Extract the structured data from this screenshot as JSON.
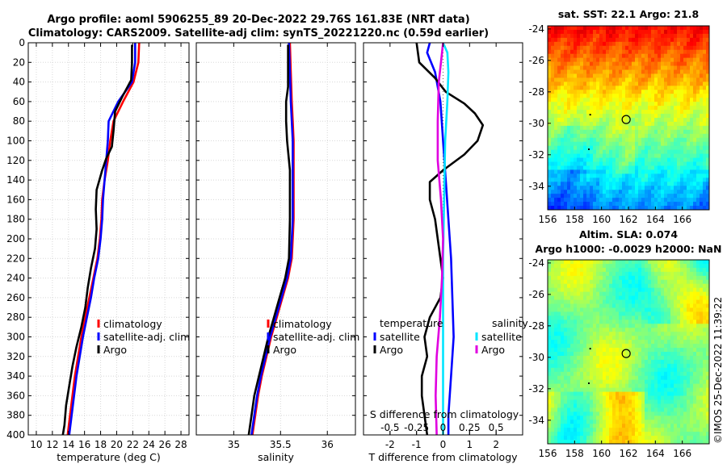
{
  "figure": {
    "title_line1": "Argo profile: aoml 5906255_89 20-Dec-2022 29.76S 161.83E (NRT data)",
    "title_line2": "Climatology: CARS2009. Satellite-adj clim: synTS_20221220.nc (0.59d earlier)",
    "credit": "©IMOS 25-Dec-2022 11:39:22"
  },
  "chart_data": [
    {
      "type": "line",
      "name": "temperature-profile",
      "xlabel": "temperature (deg C)",
      "ylabel": "",
      "xlim": [
        9,
        29
      ],
      "ylim": [
        400,
        0
      ],
      "xticks": [
        10,
        12,
        14,
        16,
        18,
        20,
        22,
        24,
        26,
        28
      ],
      "yticks": [
        0,
        20,
        40,
        60,
        80,
        100,
        120,
        140,
        160,
        180,
        200,
        220,
        240,
        260,
        280,
        300,
        320,
        340,
        360,
        380,
        400
      ],
      "grid": true,
      "legend": [
        "climatology",
        "satellite-adj. clim",
        "Argo"
      ],
      "legend_position": "bottom-right",
      "series": [
        {
          "name": "climatology",
          "color": "#ff0000",
          "points": [
            [
              22.8,
              0
            ],
            [
              22.7,
              20
            ],
            [
              22.1,
              40
            ],
            [
              20.8,
              60
            ],
            [
              19.6,
              80
            ],
            [
              19.2,
              100
            ],
            [
              18.9,
              120
            ],
            [
              18.5,
              140
            ],
            [
              18.2,
              160
            ],
            [
              18.1,
              180
            ],
            [
              17.9,
              200
            ],
            [
              17.6,
              220
            ],
            [
              17.1,
              240
            ],
            [
              16.6,
              260
            ],
            [
              16.1,
              280
            ],
            [
              15.6,
              300
            ],
            [
              15.2,
              320
            ],
            [
              14.8,
              340
            ],
            [
              14.5,
              360
            ],
            [
              14.2,
              380
            ],
            [
              13.9,
              400
            ]
          ]
        },
        {
          "name": "satellite-adj. clim",
          "color": "#0000ff",
          "points": [
            [
              22.3,
              0
            ],
            [
              22.3,
              20
            ],
            [
              21.9,
              40
            ],
            [
              20.2,
              60
            ],
            [
              19.0,
              80
            ],
            [
              18.9,
              100
            ],
            [
              18.7,
              120
            ],
            [
              18.5,
              140
            ],
            [
              18.3,
              160
            ],
            [
              18.2,
              180
            ],
            [
              18.0,
              200
            ],
            [
              17.7,
              220
            ],
            [
              17.2,
              240
            ],
            [
              16.8,
              260
            ],
            [
              16.3,
              280
            ],
            [
              15.8,
              300
            ],
            [
              15.4,
              320
            ],
            [
              15.0,
              340
            ],
            [
              14.7,
              360
            ],
            [
              14.4,
              380
            ],
            [
              14.1,
              400
            ]
          ]
        },
        {
          "name": "Argo",
          "color": "#000000",
          "points": [
            [
              21.9,
              2
            ],
            [
              21.9,
              20
            ],
            [
              21.8,
              38
            ],
            [
              20.7,
              55
            ],
            [
              19.8,
              70
            ],
            [
              19.6,
              90
            ],
            [
              19.4,
              106
            ],
            [
              18.7,
              118
            ],
            [
              18.2,
              130
            ],
            [
              17.5,
              150
            ],
            [
              17.4,
              170
            ],
            [
              17.5,
              190
            ],
            [
              17.3,
              210
            ],
            [
              16.8,
              230
            ],
            [
              16.4,
              250
            ],
            [
              16.1,
              270
            ],
            [
              15.6,
              290
            ],
            [
              15.0,
              310
            ],
            [
              14.5,
              330
            ],
            [
              14.1,
              350
            ],
            [
              13.7,
              370
            ],
            [
              13.5,
              390
            ],
            [
              13.3,
              400
            ]
          ]
        }
      ]
    },
    {
      "type": "line",
      "name": "salinity-profile",
      "xlabel": "salinity",
      "xlim": [
        34.6,
        36.3
      ],
      "ylim": [
        400,
        0
      ],
      "xticks": [
        35,
        35.5,
        36
      ],
      "grid": true,
      "legend": [
        "climatology",
        "satellite-adj. clim",
        "Argo"
      ],
      "legend_position": "bottom-right",
      "series": [
        {
          "name": "climatology",
          "color": "#ff0000",
          "points": [
            [
              35.6,
              0
            ],
            [
              35.61,
              30
            ],
            [
              35.62,
              60
            ],
            [
              35.63,
              80
            ],
            [
              35.64,
              100
            ],
            [
              35.64,
              140
            ],
            [
              35.64,
              180
            ],
            [
              35.63,
              200
            ],
            [
              35.62,
              220
            ],
            [
              35.58,
              240
            ],
            [
              35.52,
              260
            ],
            [
              35.46,
              280
            ],
            [
              35.4,
              300
            ],
            [
              35.35,
              320
            ],
            [
              35.3,
              340
            ],
            [
              35.26,
              360
            ],
            [
              35.23,
              380
            ],
            [
              35.2,
              400
            ]
          ]
        },
        {
          "name": "satellite-adj. clim",
          "color": "#0000ff",
          "points": [
            [
              35.59,
              0
            ],
            [
              35.6,
              30
            ],
            [
              35.61,
              60
            ],
            [
              35.62,
              80
            ],
            [
              35.63,
              100
            ],
            [
              35.63,
              140
            ],
            [
              35.63,
              180
            ],
            [
              35.62,
              200
            ],
            [
              35.61,
              220
            ],
            [
              35.57,
              240
            ],
            [
              35.51,
              260
            ],
            [
              35.45,
              280
            ],
            [
              35.39,
              300
            ],
            [
              35.34,
              320
            ],
            [
              35.29,
              340
            ],
            [
              35.25,
              360
            ],
            [
              35.22,
              380
            ],
            [
              35.19,
              400
            ]
          ]
        },
        {
          "name": "Argo",
          "color": "#000000",
          "points": [
            [
              35.58,
              2
            ],
            [
              35.58,
              30
            ],
            [
              35.58,
              45
            ],
            [
              35.56,
              60
            ],
            [
              35.56,
              80
            ],
            [
              35.57,
              100
            ],
            [
              35.6,
              130
            ],
            [
              35.6,
              180
            ],
            [
              35.59,
              220
            ],
            [
              35.55,
              240
            ],
            [
              35.49,
              260
            ],
            [
              35.43,
              280
            ],
            [
              35.37,
              300
            ],
            [
              35.32,
              320
            ],
            [
              35.27,
              340
            ],
            [
              35.22,
              360
            ],
            [
              35.19,
              380
            ],
            [
              35.16,
              400
            ]
          ]
        }
      ]
    },
    {
      "type": "line",
      "name": "difference-profile",
      "xlabel": "T difference from climatology",
      "xlabel2": "S difference from climatology",
      "xlim": [
        -3,
        3
      ],
      "ylim": [
        400,
        0
      ],
      "xticks": [
        -2,
        -1,
        0,
        1,
        2
      ],
      "xticks_salinity": [
        -0.5,
        -0.25,
        0,
        0.25,
        0.5
      ],
      "grid": false,
      "legend_temperature_header": "temperature",
      "legend_salinity_header": "salinity",
      "legend_temperature": [
        "satellite",
        "Argo"
      ],
      "legend_salinity": [
        "satellite",
        "Argo"
      ],
      "legend_position": "bottom",
      "series": [
        {
          "name": "temperature satellite",
          "color": "#0000ff",
          "points": [
            [
              -0.5,
              0
            ],
            [
              -0.6,
              10
            ],
            [
              -0.3,
              30
            ],
            [
              -0.1,
              60
            ],
            [
              0,
              100
            ],
            [
              0.1,
              140
            ],
            [
              0.2,
              180
            ],
            [
              0.3,
              220
            ],
            [
              0.35,
              260
            ],
            [
              0.4,
              300
            ],
            [
              0.3,
              340
            ],
            [
              0.2,
              380
            ],
            [
              0.2,
              400
            ]
          ]
        },
        {
          "name": "temperature Argo",
          "color": "#000000",
          "points": [
            [
              -1,
              0
            ],
            [
              -0.9,
              20
            ],
            [
              -0.3,
              36
            ],
            [
              0.1,
              50
            ],
            [
              0.8,
              62
            ],
            [
              1.2,
              72
            ],
            [
              1.5,
              84
            ],
            [
              1.3,
              100
            ],
            [
              0.8,
              114
            ],
            [
              0,
              130
            ],
            [
              -0.5,
              142
            ],
            [
              -0.5,
              160
            ],
            [
              -0.3,
              180
            ],
            [
              -0.1,
              220
            ],
            [
              0,
              240
            ],
            [
              -0.1,
              260
            ],
            [
              -0.5,
              280
            ],
            [
              -0.7,
              300
            ],
            [
              -0.6,
              320
            ],
            [
              -0.8,
              340
            ],
            [
              -0.8,
              360
            ],
            [
              -0.7,
              380
            ],
            [
              -0.6,
              400
            ]
          ]
        },
        {
          "name": "salinity satellite",
          "color": "#00e5ff",
          "points": [
            [
              0,
              0
            ],
            [
              0.04,
              10
            ],
            [
              0.05,
              30
            ],
            [
              0.04,
              60
            ],
            [
              0.02,
              100
            ],
            [
              0.01,
              160
            ],
            [
              0,
              220
            ],
            [
              0,
              280
            ],
            [
              0,
              340
            ],
            [
              0,
              400
            ]
          ]
        },
        {
          "name": "salinity Argo",
          "color": "#e000e0",
          "points": [
            [
              0,
              0
            ],
            [
              -0.02,
              20
            ],
            [
              -0.04,
              40
            ],
            [
              -0.05,
              80
            ],
            [
              -0.05,
              120
            ],
            [
              -0.02,
              160
            ],
            [
              0,
              200
            ],
            [
              -0.01,
              240
            ],
            [
              -0.03,
              280
            ],
            [
              -0.06,
              320
            ],
            [
              -0.07,
              360
            ],
            [
              -0.06,
              400
            ]
          ]
        }
      ]
    },
    {
      "type": "heatmap",
      "name": "sst-map",
      "title": "sat. SST: 22.1 Argo: 21.8",
      "xlim": [
        156,
        168
      ],
      "ylim": [
        -35.5,
        -23.8
      ],
      "xticks": [
        156,
        158,
        160,
        162,
        164,
        166
      ],
      "yticks": [
        -24,
        -26,
        -28,
        -30,
        -32,
        -34
      ],
      "marker": {
        "lon": 161.83,
        "lat": -29.76
      }
    },
    {
      "type": "heatmap",
      "name": "sla-map",
      "title": "Altim. SLA: 0.074",
      "subtitle": "Argo h1000: -0.0029 h2000: NaN",
      "xlim": [
        156,
        168
      ],
      "ylim": [
        -35.5,
        -23.8
      ],
      "xticks": [
        156,
        158,
        160,
        162,
        164,
        166
      ],
      "yticks": [
        -24,
        -26,
        -28,
        -30,
        -32,
        -34
      ],
      "marker": {
        "lon": 161.83,
        "lat": -29.76
      }
    }
  ]
}
